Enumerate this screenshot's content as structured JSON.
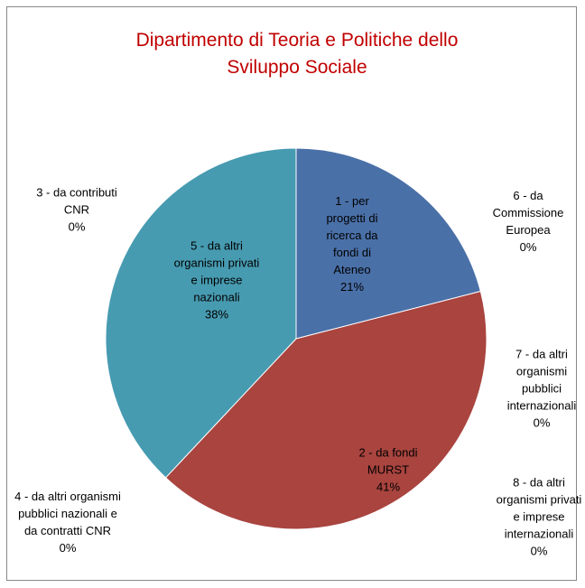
{
  "chart_data": {
    "type": "pie",
    "title": "Dipartimento di Teoria e Politiche dello Sviluppo Sociale",
    "categories": [
      "1 - per progetti di ricerca da fondi di Ateneo",
      "2 - da fondi MURST",
      "3 - da contributi CNR",
      "4 - da altri organismi pubblici nazionali e da contratti CNR",
      "5 - da altri organismi privati e imprese nazionali",
      "6 - da Commissione Europea",
      "7 - da altri organismi pubblici internazionali",
      "8 - da altri organismi privati e imprese internazionali"
    ],
    "values": [
      21,
      41,
      0,
      0,
      38,
      0,
      0,
      0
    ],
    "value_labels": [
      "21%",
      "41%",
      "0%",
      "0%",
      "38%",
      "0%",
      "0%",
      "0%"
    ],
    "colors": [
      "#4a70a8",
      "#a9443f",
      "#8aa44d",
      "#7a5d9a",
      "#479bb1",
      "#e0893a",
      "#9db3d6",
      "#d69a98"
    ]
  }
}
